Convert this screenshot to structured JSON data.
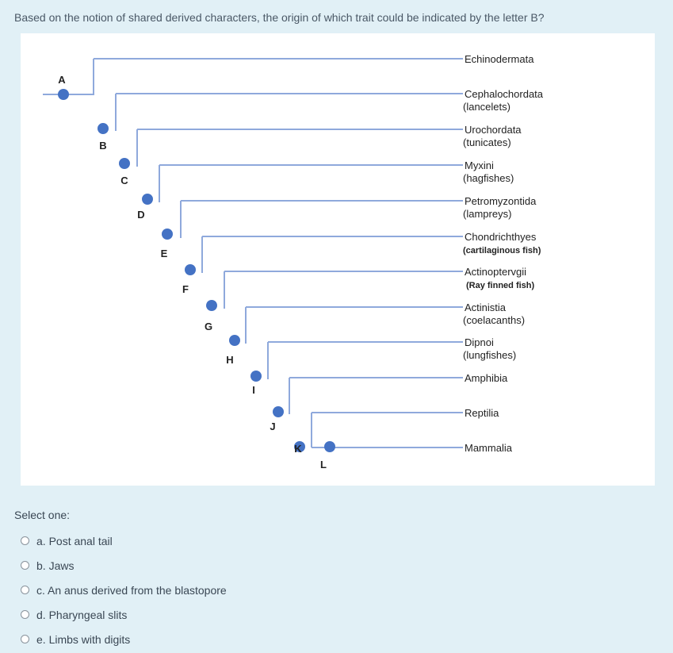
{
  "question": "Based on the notion of shared derived characters, the origin of which trait could be indicated by the letter B?",
  "tree": {
    "taxa": [
      {
        "name": "Echinodermata",
        "sub": ""
      },
      {
        "name": "Cephalochordata",
        "sub": "(lancelets)"
      },
      {
        "name": "Urochordata",
        "sub": "(tunicates)"
      },
      {
        "name": "Myxini",
        "sub": "(hagfishes)"
      },
      {
        "name": "Petromyzontida",
        "sub": "(lampreys)"
      },
      {
        "name": "Chondrichthyes",
        "sub": "(cartilaginous fish)"
      },
      {
        "name": "Actinoptervgii",
        "sub": "(Ray finned fish)"
      },
      {
        "name": "Actinistia",
        "sub": "(coelacanths)"
      },
      {
        "name": "Dipnoi",
        "sub": "(lungfishes)"
      },
      {
        "name": "Amphibia",
        "sub": ""
      },
      {
        "name": "Reptilia",
        "sub": ""
      },
      {
        "name": "Mammalia",
        "sub": ""
      }
    ],
    "node_letters": [
      "A",
      "B",
      "C",
      "D",
      "E",
      "F",
      "G",
      "H",
      "I",
      "J",
      "K",
      "L"
    ],
    "colors": {
      "line": "#8fa9dc",
      "node": "#4472c4"
    }
  },
  "select_label": "Select one:",
  "options": [
    "a. Post anal tail",
    "b. Jaws",
    "c. An anus derived from the blastopore",
    "d. Pharyngeal slits",
    "e. Limbs with digits"
  ]
}
